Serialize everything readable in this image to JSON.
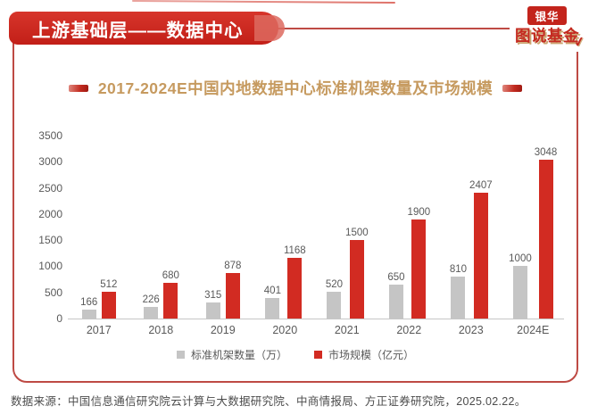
{
  "header": {
    "banner_title": "上游基础层——数据中心",
    "logo": {
      "badge": "银华",
      "name": "图说基金",
      "check": "✓"
    }
  },
  "chart_data": {
    "type": "bar",
    "title": "2017-2024E中国内地数据中心标准机架数量及市场规模",
    "categories": [
      "2017",
      "2018",
      "2019",
      "2020",
      "2021",
      "2022",
      "2023",
      "2024E"
    ],
    "series": [
      {
        "name": "标准机架数量（万）",
        "color": "#C5C5C5",
        "values": [
          166,
          226,
          315,
          401,
          520,
          650,
          810,
          1000
        ]
      },
      {
        "name": "市场规模（亿元）",
        "color": "#D22B22",
        "values": [
          512,
          680,
          878,
          1168,
          1500,
          1900,
          2407,
          3048
        ]
      }
    ],
    "ylim": [
      0,
      3500
    ],
    "yticks": [
      0,
      500,
      1000,
      1500,
      2000,
      2500,
      3000,
      3500
    ],
    "grid": false,
    "legend_position": "bottom",
    "value_labels": true
  },
  "footer": {
    "source": "数据来源：中国信息通信研究院云计算与大数据研究院、中商情报局、方正证券研究院，2025.02.22。"
  },
  "colors": {
    "accent_red": "#C7251D",
    "bar_red": "#D22B22",
    "bar_gray": "#C5C5C5",
    "title_gold": "#C69A5F",
    "border_red": "#BE4A44"
  }
}
